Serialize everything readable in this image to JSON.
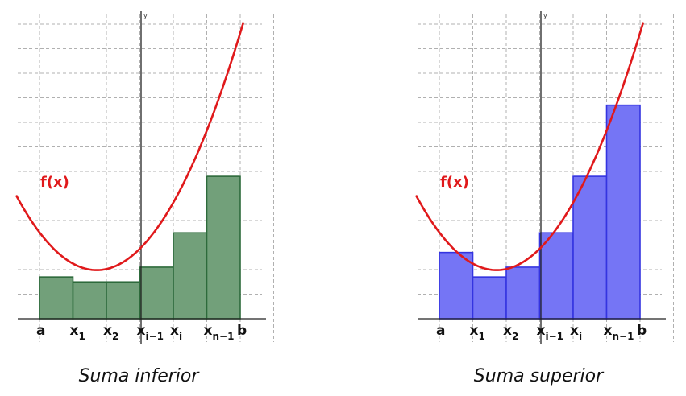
{
  "function_label": "f(x)",
  "y_axis_label": "y",
  "colors": {
    "curve": "#e0191b",
    "lower_fill": "#72a07a",
    "lower_stroke": "#2d6a3b",
    "upper_fill": "#7575f5",
    "upper_stroke": "#3434e0"
  },
  "x_labels": [
    {
      "main": "a",
      "sub": ""
    },
    {
      "main": "x",
      "sub": "1"
    },
    {
      "main": "x",
      "sub": "2"
    },
    {
      "main": "x",
      "sub": "i−1"
    },
    {
      "main": "x",
      "sub": "i"
    },
    {
      "main": "x",
      "sub": "n−1"
    },
    {
      "main": "b",
      "sub": ""
    }
  ],
  "panels": [
    {
      "caption": "Suma inferior",
      "kind": "lower",
      "rect_heights": [
        1.7,
        1.5,
        1.5,
        2.1,
        3.5,
        5.8
      ]
    },
    {
      "caption": "Suma superior",
      "kind": "upper",
      "rect_heights": [
        2.7,
        1.7,
        2.1,
        3.5,
        5.8,
        8.7
      ]
    }
  ]
}
